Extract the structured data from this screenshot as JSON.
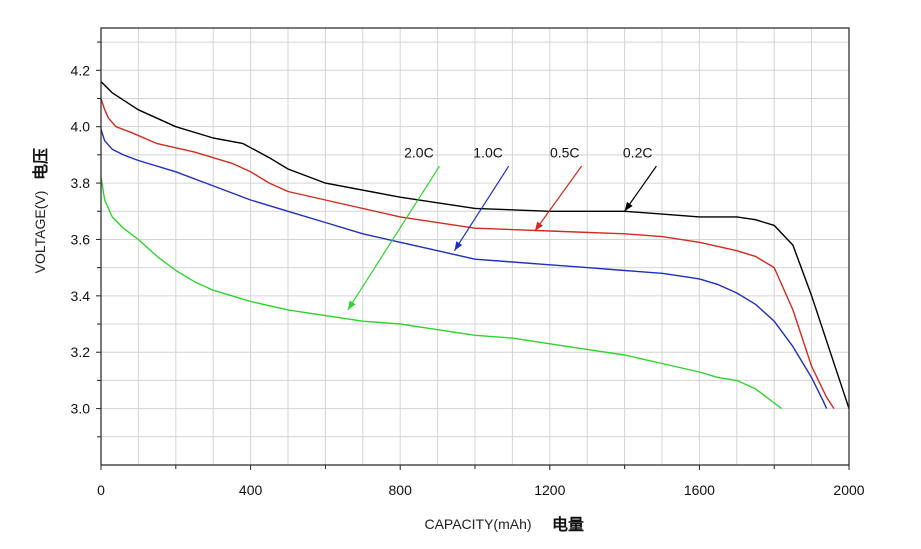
{
  "chart_data": {
    "type": "line",
    "xlabel": "CAPACITY(mAh)",
    "xlabel_cn": "电量",
    "ylabel": "VOLTAGE(V)",
    "ylabel_cn": "电压",
    "xlim": [
      0,
      2000
    ],
    "ylim": [
      2.8,
      4.35
    ],
    "xticks": [
      0,
      400,
      800,
      1200,
      1600,
      2000
    ],
    "xtick_labels": [
      "0",
      "400",
      "800",
      "1200",
      "1600",
      "2000"
    ],
    "yticks": [
      3.0,
      3.2,
      3.4,
      3.6,
      3.8,
      4.0,
      4.2
    ],
    "ytick_labels": [
      "3.0",
      "3.2",
      "3.4",
      "3.6",
      "3.8",
      "4.0",
      "4.2"
    ],
    "grid": true,
    "series": [
      {
        "name": "0.2C",
        "color": "#000000",
        "x": [
          0,
          30,
          100,
          200,
          300,
          380,
          450,
          500,
          600,
          800,
          1000,
          1200,
          1400,
          1500,
          1600,
          1700,
          1750,
          1800,
          1850,
          1900,
          1950,
          1990,
          2000
        ],
        "y": [
          4.16,
          4.12,
          4.06,
          4.0,
          3.96,
          3.94,
          3.89,
          3.85,
          3.8,
          3.75,
          3.71,
          3.7,
          3.7,
          3.69,
          3.68,
          3.68,
          3.67,
          3.65,
          3.58,
          3.4,
          3.2,
          3.04,
          3.0
        ]
      },
      {
        "name": "0.5C",
        "color": "#d42a20",
        "x": [
          0,
          10,
          20,
          40,
          80,
          150,
          250,
          350,
          400,
          450,
          500,
          600,
          800,
          1000,
          1200,
          1400,
          1500,
          1600,
          1700,
          1750,
          1800,
          1850,
          1900,
          1940,
          1960
        ],
        "y": [
          4.1,
          4.06,
          4.03,
          4.0,
          3.98,
          3.94,
          3.91,
          3.87,
          3.84,
          3.8,
          3.77,
          3.74,
          3.68,
          3.64,
          3.63,
          3.62,
          3.61,
          3.59,
          3.56,
          3.54,
          3.5,
          3.35,
          3.15,
          3.04,
          3.0
        ]
      },
      {
        "name": "1.0C",
        "color": "#1f2fc0",
        "x": [
          0,
          10,
          30,
          60,
          100,
          200,
          300,
          400,
          500,
          600,
          700,
          800,
          900,
          1000,
          1100,
          1200,
          1300,
          1400,
          1500,
          1550,
          1600,
          1650,
          1700,
          1750,
          1800,
          1850,
          1900,
          1930,
          1940
        ],
        "y": [
          3.99,
          3.95,
          3.92,
          3.9,
          3.88,
          3.84,
          3.79,
          3.74,
          3.7,
          3.66,
          3.62,
          3.59,
          3.56,
          3.53,
          3.52,
          3.51,
          3.5,
          3.49,
          3.48,
          3.47,
          3.46,
          3.44,
          3.41,
          3.37,
          3.31,
          3.22,
          3.11,
          3.03,
          3.0
        ]
      },
      {
        "name": "2.0C",
        "color": "#2ed42e",
        "x": [
          0,
          10,
          30,
          60,
          100,
          150,
          200,
          250,
          300,
          350,
          400,
          500,
          600,
          700,
          800,
          900,
          1000,
          1100,
          1200,
          1300,
          1400,
          1500,
          1600,
          1650,
          1700,
          1750,
          1780,
          1800,
          1820
        ],
        "y": [
          3.82,
          3.74,
          3.68,
          3.64,
          3.6,
          3.54,
          3.49,
          3.45,
          3.42,
          3.4,
          3.38,
          3.35,
          3.33,
          3.31,
          3.3,
          3.28,
          3.26,
          3.25,
          3.23,
          3.21,
          3.19,
          3.16,
          3.13,
          3.11,
          3.1,
          3.07,
          3.04,
          3.02,
          3.0
        ]
      }
    ],
    "annotations": [
      {
        "text": "2.0C",
        "series": "2.0C",
        "text_at": [
          850,
          3.89
        ],
        "arrow_from": [
          905,
          3.86
        ],
        "arrow_to": [
          660,
          3.35
        ]
      },
      {
        "text": "1.0C",
        "series": "1.0C",
        "text_at": [
          1035,
          3.89
        ],
        "arrow_from": [
          1090,
          3.86
        ],
        "arrow_to": [
          945,
          3.56
        ]
      },
      {
        "text": "0.5C",
        "series": "0.5C",
        "text_at": [
          1240,
          3.89
        ],
        "arrow_from": [
          1285,
          3.86
        ],
        "arrow_to": [
          1160,
          3.63
        ]
      },
      {
        "text": "0.2C",
        "series": "0.2C",
        "text_at": [
          1435,
          3.89
        ],
        "arrow_from": [
          1485,
          3.86
        ],
        "arrow_to": [
          1400,
          3.7
        ]
      }
    ]
  }
}
